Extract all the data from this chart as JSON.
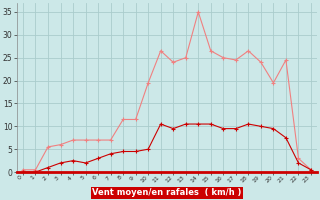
{
  "x": [
    0,
    1,
    2,
    3,
    4,
    5,
    6,
    7,
    8,
    9,
    10,
    11,
    12,
    13,
    14,
    15,
    16,
    17,
    18,
    19,
    20,
    21,
    22,
    23
  ],
  "wind_avg": [
    0,
    0,
    1,
    2,
    2.5,
    2,
    3,
    4,
    4.5,
    4.5,
    5,
    10.5,
    9.5,
    10.5,
    10.5,
    10.5,
    9.5,
    9.5,
    10.5,
    10,
    9.5,
    7.5,
    2,
    0.5
  ],
  "wind_gust": [
    0.5,
    0.5,
    5.5,
    6,
    7,
    7,
    7,
    7,
    11.5,
    11.5,
    19.5,
    26.5,
    24,
    25,
    35,
    26.5,
    25,
    24.5,
    26.5,
    24,
    19.5,
    24.5,
    3,
    0.5
  ],
  "avg_color": "#cc0000",
  "gust_color": "#f08080",
  "bg_color": "#cce8e8",
  "grid_color": "#aacccc",
  "xlabel": "Vent moyen/en rafales  ( km/h )",
  "xlabel_color": "#cc0000",
  "xlabel_bg": "#cc0000",
  "yticks": [
    0,
    5,
    10,
    15,
    20,
    25,
    30,
    35
  ],
  "ylim": [
    0,
    37
  ],
  "xlim": [
    -0.5,
    23.5
  ]
}
